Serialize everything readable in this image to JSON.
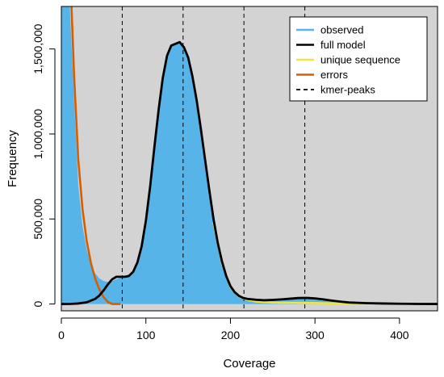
{
  "chart_data": {
    "type": "area",
    "xlabel": "Coverage",
    "ylabel": "Frequency",
    "xlim": [
      0,
      445
    ],
    "ylim": [
      -40000,
      1750000
    ],
    "x_ticks": [
      0,
      100,
      200,
      300,
      400
    ],
    "x_tick_labels": [
      "0",
      "100",
      "200",
      "300",
      "400"
    ],
    "y_ticks": [
      0,
      500000,
      1000000,
      1500000
    ],
    "y_tick_labels": [
      "0",
      "500,000",
      "1,000,000",
      "1,500,000"
    ],
    "legend_position": "top-right",
    "kmer_peaks": [
      72,
      144,
      216,
      288
    ],
    "colors": {
      "panel_background": "#d3d3d3",
      "observed": "#56b4e9",
      "full_model": "#000000",
      "unique_sequence": "#f0e442",
      "errors": "#d55e00",
      "kmer_peaks": "#000000"
    },
    "legend": [
      {
        "label": "observed",
        "style": "solid",
        "color": "#56b4e9"
      },
      {
        "label": "full model",
        "style": "solid",
        "color": "#000000"
      },
      {
        "label": "unique sequence",
        "style": "solid",
        "color": "#f0e442"
      },
      {
        "label": "errors",
        "style": "solid",
        "color": "#d55e00"
      },
      {
        "label": "kmer-peaks",
        "style": "dashed",
        "color": "#000000"
      }
    ],
    "series": [
      {
        "name": "observed",
        "x": [
          0,
          5,
          10,
          15,
          20,
          25,
          30,
          35,
          40,
          45,
          50,
          55,
          60,
          65,
          70,
          75,
          80,
          85,
          90,
          95,
          100,
          105,
          110,
          115,
          120,
          125,
          130,
          135,
          140,
          145,
          150,
          155,
          160,
          165,
          170,
          175,
          180,
          185,
          190,
          195,
          200,
          205,
          210,
          215,
          220,
          230,
          240,
          250,
          260,
          270,
          280,
          290,
          300,
          310,
          320,
          330,
          340,
          360,
          380,
          400,
          420,
          445
        ],
        "y": [
          1750000,
          1750000,
          1750000,
          1200000,
          700000,
          460000,
          320000,
          230000,
          180000,
          150000,
          135000,
          130000,
          135000,
          145000,
          155000,
          165000,
          175000,
          200000,
          250000,
          350000,
          500000,
          700000,
          930000,
          1150000,
          1340000,
          1460000,
          1520000,
          1530000,
          1540000,
          1510000,
          1450000,
          1340000,
          1200000,
          1030000,
          850000,
          670000,
          500000,
          360000,
          250000,
          165000,
          105000,
          70000,
          48000,
          36000,
          30000,
          25000,
          22000,
          24000,
          27000,
          31000,
          35000,
          36000,
          33000,
          27000,
          20000,
          14000,
          9000,
          5000,
          3000,
          1500,
          500,
          0
        ]
      },
      {
        "name": "full model",
        "x": [
          0,
          10,
          20,
          30,
          40,
          45,
          50,
          55,
          60,
          65,
          70,
          75,
          80,
          85,
          90,
          95,
          100,
          105,
          110,
          115,
          120,
          125,
          130,
          135,
          140,
          145,
          150,
          155,
          160,
          165,
          170,
          175,
          180,
          185,
          190,
          195,
          200,
          205,
          210,
          215,
          220,
          230,
          240,
          250,
          260,
          270,
          280,
          290,
          300,
          310,
          320,
          330,
          340,
          360,
          380,
          400,
          420,
          445
        ],
        "y": [
          0,
          500,
          3000,
          10000,
          30000,
          50000,
          80000,
          115000,
          145000,
          160000,
          160000,
          160000,
          165000,
          190000,
          245000,
          340000,
          490000,
          690000,
          920000,
          1140000,
          1330000,
          1460000,
          1520000,
          1530000,
          1540000,
          1510000,
          1450000,
          1340000,
          1200000,
          1030000,
          850000,
          670000,
          500000,
          360000,
          250000,
          165000,
          105000,
          70000,
          48000,
          36000,
          30000,
          25000,
          22000,
          24000,
          27000,
          31000,
          35000,
          36000,
          33000,
          27000,
          20000,
          14000,
          9000,
          5000,
          3000,
          1500,
          500,
          0
        ]
      },
      {
        "name": "unique sequence",
        "x": [
          180,
          190,
          200,
          210,
          220,
          230,
          240,
          250,
          260,
          270,
          280,
          290,
          300,
          310,
          320,
          330,
          340,
          350,
          360,
          380,
          400,
          445
        ],
        "y": [
          480000,
          240000,
          100000,
          45000,
          24000,
          15000,
          11000,
          9000,
          8000,
          7500,
          7000,
          6500,
          6000,
          5000,
          4000,
          3000,
          2000,
          1200,
          700,
          300,
          100,
          0
        ]
      },
      {
        "name": "errors",
        "x": [
          12,
          15,
          20,
          25,
          30,
          35,
          40,
          45,
          50,
          55,
          60,
          65,
          70
        ],
        "y": [
          1750000,
          1350000,
          850000,
          560000,
          370000,
          240000,
          150000,
          85000,
          40000,
          12000,
          0,
          0,
          0
        ]
      }
    ]
  }
}
